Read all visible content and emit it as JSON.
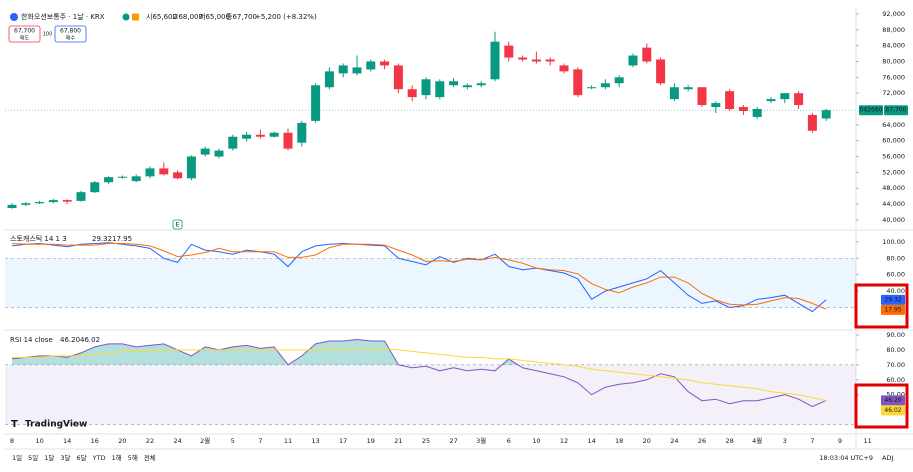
{
  "chart_data": [
    {
      "type": "candlestick",
      "categories": [
        "8",
        null,
        "10",
        null,
        "14",
        null,
        "16",
        null,
        "20",
        null,
        "22",
        null,
        "24",
        null,
        "2월",
        null,
        "5",
        null,
        "7",
        null,
        "11",
        null,
        "13",
        null,
        "17",
        null,
        "19",
        null,
        "21",
        null,
        "25",
        null,
        "27",
        null,
        "3월",
        null,
        "6",
        null,
        "10",
        null,
        "12",
        null,
        "14",
        null,
        "18",
        null,
        "20",
        null,
        "24",
        null,
        "26",
        null,
        "28",
        null,
        "4월",
        null,
        "3",
        null,
        "7",
        null,
        "9",
        null,
        "11"
      ],
      "open": [
        43000,
        43800,
        44200,
        44500,
        45000,
        44800,
        47000,
        49500,
        50800,
        49800,
        51000,
        53000,
        52000,
        50500,
        56500,
        56000,
        58000,
        60500,
        61500,
        61000,
        62000,
        59500,
        65000,
        73500,
        77000,
        77000,
        78000,
        80000,
        79000,
        73000,
        71500,
        71000,
        74000,
        73500,
        74000,
        75500,
        84000,
        81000,
        80500,
        80500,
        79000,
        78000,
        73500,
        73500,
        74500,
        79000,
        83500,
        80500,
        70500,
        73000,
        73500,
        68500,
        72500,
        68500,
        66000,
        70000,
        70500,
        72000,
        66500,
        65600,
        null,
        null,
        null
      ],
      "high": [
        44200,
        44500,
        44800,
        45300,
        45200,
        47300,
        49800,
        51000,
        51200,
        51500,
        53500,
        54500,
        52500,
        56300,
        58500,
        58000,
        61500,
        62200,
        62800,
        62300,
        63000,
        65000,
        74500,
        78500,
        79500,
        81500,
        80500,
        80500,
        79500,
        74000,
        76000,
        75500,
        75800,
        74500,
        75000,
        87500,
        85000,
        81500,
        82500,
        81000,
        79500,
        78500,
        74000,
        75500,
        76500,
        82000,
        84500,
        81000,
        74500,
        74000,
        73500,
        70000,
        73000,
        69000,
        68500,
        71000,
        72000,
        72500,
        67000,
        68000,
        null,
        null,
        null
      ],
      "low": [
        42800,
        43500,
        44000,
        44200,
        44000,
        44600,
        46800,
        49000,
        50400,
        49500,
        50500,
        51200,
        50200,
        50000,
        56000,
        55500,
        57500,
        59800,
        60500,
        60800,
        57500,
        58500,
        64500,
        73000,
        76000,
        76500,
        77500,
        78000,
        72000,
        70000,
        70500,
        70500,
        73500,
        73000,
        73500,
        75000,
        80000,
        80000,
        79500,
        79000,
        77000,
        71000,
        73000,
        73000,
        73500,
        78500,
        79500,
        74000,
        70000,
        72500,
        68500,
        67000,
        67500,
        66500,
        65500,
        69500,
        69500,
        68000,
        62000,
        65000,
        null,
        null,
        null
      ],
      "close": [
        43800,
        44200,
        44500,
        45000,
        44600,
        47000,
        49500,
        50800,
        50900,
        51000,
        53000,
        51500,
        50500,
        56000,
        58000,
        57500,
        61000,
        61500,
        61000,
        62000,
        58000,
        64500,
        74000,
        77500,
        79000,
        78500,
        80000,
        79000,
        73000,
        71000,
        75500,
        75000,
        75000,
        74000,
        74500,
        85000,
        81000,
        80500,
        80000,
        80000,
        77500,
        71500,
        73500,
        74500,
        76000,
        81500,
        80000,
        74500,
        73500,
        73500,
        69000,
        69500,
        68000,
        67500,
        68000,
        70500,
        72000,
        69000,
        62500,
        67700,
        null,
        null,
        null
      ],
      "up_color": "#089981",
      "down_color": "#f23645",
      "ylim": [
        37700,
        93000
      ],
      "yticks": [
        {
          "value": 40000,
          "label": "40,000"
        },
        {
          "value": 44000,
          "label": "44,000"
        },
        {
          "value": 48000,
          "label": "48,000"
        },
        {
          "value": 52000,
          "label": "52,000"
        },
        {
          "value": 56000,
          "label": "56,000"
        },
        {
          "value": 60000,
          "label": "60,000"
        },
        {
          "value": 64000,
          "label": "64,000"
        },
        {
          "value": 72000,
          "label": "72,000"
        },
        {
          "value": 76000,
          "label": "76,000"
        },
        {
          "value": 80000,
          "label": "80,000"
        },
        {
          "value": 84000,
          "label": "84,000"
        },
        {
          "value": 88000,
          "label": "88,000"
        },
        {
          "value": 92000,
          "label": "92,000"
        }
      ]
    },
    {
      "type": "line",
      "title": "스토캐스틱 14 1 3",
      "series": [
        {
          "color": "#2962ff",
          "values": [
            95,
            97,
            98,
            96,
            94,
            97,
            98,
            99,
            97,
            95,
            92,
            80,
            75,
            97,
            90,
            88,
            85,
            90,
            88,
            85,
            70,
            88,
            95,
            97,
            98,
            97,
            96,
            95,
            80,
            76,
            72,
            82,
            75,
            80,
            78,
            85,
            70,
            66,
            68,
            65,
            62,
            55,
            30,
            40,
            45,
            50,
            55,
            65,
            50,
            35,
            25,
            28,
            20,
            22,
            30,
            32,
            35,
            25,
            15,
            29.32,
            null,
            null,
            null
          ]
        },
        {
          "color": "#ff6d00",
          "values": [
            98,
            97,
            97,
            97,
            96,
            96,
            96,
            98,
            98,
            97,
            95,
            89,
            82,
            84,
            87,
            92,
            88,
            88,
            88,
            88,
            81,
            81,
            84,
            93,
            97,
            97,
            97,
            96,
            90,
            84,
            76,
            77,
            76,
            79,
            78,
            81,
            78,
            74,
            68,
            66,
            65,
            61,
            49,
            42,
            38,
            45,
            50,
            57,
            57,
            50,
            37,
            29,
            24,
            23,
            24,
            28,
            32,
            31,
            25,
            17.95,
            null,
            null,
            null
          ]
        }
      ],
      "bands": [
        20,
        80
      ],
      "band_color": "#2196f3",
      "ylim": [
        -5,
        112
      ],
      "yticks": [
        {
          "value": 40,
          "label": "40.00"
        },
        {
          "value": 60,
          "label": "60.00"
        },
        {
          "value": 80,
          "label": "80.00"
        },
        {
          "value": 100,
          "label": "100.00"
        }
      ]
    },
    {
      "type": "line",
      "title": "RSI 14 close",
      "series": [
        {
          "color": "#7e57c2",
          "last_label": "46.20",
          "values": [
            74,
            75,
            76,
            76,
            75,
            78,
            82,
            84,
            84,
            82,
            83,
            84,
            80,
            76,
            82,
            80,
            82,
            83,
            81,
            82,
            70,
            76,
            84,
            86,
            86,
            87,
            86,
            86,
            70,
            68,
            69,
            66,
            68,
            66,
            67,
            66,
            74,
            68,
            66,
            64,
            62,
            58,
            50,
            55,
            57,
            58,
            60,
            64,
            62,
            52,
            46,
            47,
            44,
            46,
            46,
            48,
            50,
            47,
            42,
            46.2,
            null,
            null,
            null
          ]
        },
        {
          "color": "#fdd835",
          "last_label": "46.02",
          "values": [
            75,
            75,
            75,
            76,
            76,
            76,
            77,
            78,
            79,
            79,
            79,
            80,
            80,
            80,
            80,
            80,
            80,
            80,
            80,
            80,
            80,
            80,
            80,
            81,
            81,
            81,
            81,
            81,
            80,
            79,
            78,
            77,
            76,
            75,
            75,
            74,
            74,
            73,
            72,
            71,
            70,
            69,
            67,
            66,
            65,
            64,
            63,
            62,
            61,
            60,
            58,
            57,
            56,
            55,
            54,
            52,
            51,
            50,
            48,
            46.02,
            null,
            null,
            null
          ]
        }
      ],
      "bands": [
        30,
        70
      ],
      "band_color": "#7e57c2",
      "ylim": [
        21,
        92
      ],
      "yticks": [
        {
          "value": 50,
          "label": "50.00"
        },
        {
          "value": 60,
          "label": "60.00"
        },
        {
          "value": 70,
          "label": "70.00"
        },
        {
          "value": 80,
          "label": "80.00"
        },
        {
          "value": 90,
          "label": "90.00"
        }
      ]
    }
  ],
  "ui": {
    "symbol": "한화오션보통주 · 1날 · KRX",
    "ohlc": [
      "시65,600",
      "고68,000",
      "저65,000",
      "종67,700",
      "+5,200 (+8.32%)"
    ],
    "sell_price": "67,700",
    "sell": "매도",
    "qty": "100",
    "buy_price": "67,800",
    "buy": "매수",
    "earnings": "E",
    "last_code": "042660",
    "last_price": "67,700",
    "logo": "TradingView",
    "ranges": [
      "1일",
      "5일",
      "1달",
      "3달",
      "6달",
      "YTD",
      "1해",
      "5해",
      "전체"
    ],
    "clock": "18:03:04 UTC+9",
    "adj": "ADJ"
  }
}
